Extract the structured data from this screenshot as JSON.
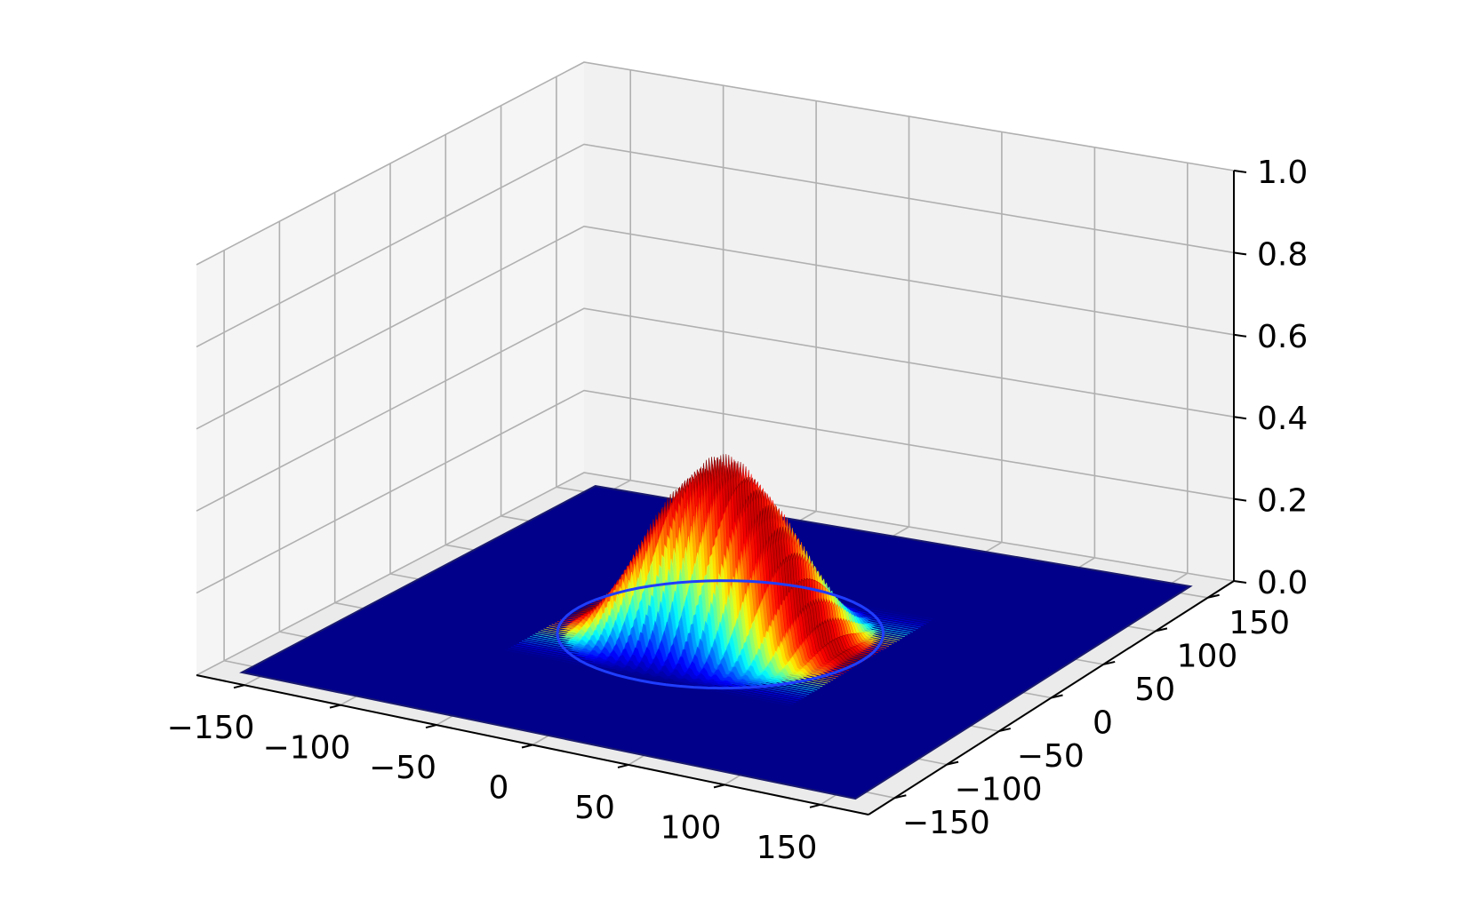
{
  "chart_data": {
    "type": "surface3d",
    "title": "",
    "xlabel": "",
    "ylabel": "",
    "zlabel": "",
    "xlim": [
      -175,
      175
    ],
    "ylim": [
      -175,
      175
    ],
    "zlim": [
      0,
      1
    ],
    "x_ticks": [
      -150,
      -100,
      -50,
      0,
      50,
      100,
      150
    ],
    "y_ticks": [
      -150,
      -100,
      -50,
      0,
      50,
      100,
      150
    ],
    "z_ticks": [
      0.0,
      0.2,
      0.4,
      0.6,
      0.8,
      1.0
    ],
    "x_tick_labels": [
      "−150",
      "−100",
      "−50",
      "0",
      "50",
      "100",
      "150"
    ],
    "y_tick_labels": [
      "−150",
      "−100",
      "−50",
      "0",
      "50",
      "100",
      "150"
    ],
    "z_tick_labels": [
      "0.0",
      "0.2",
      "0.4",
      "0.6",
      "0.8",
      "1.0"
    ],
    "grid": true,
    "colormap": "jet",
    "surface_extent": [
      -160,
      160
    ],
    "surface": {
      "description": "radially symmetric bump centered at origin; fringes along x",
      "center": [
        0,
        0
      ],
      "peak_z": 0.44,
      "radius": 75,
      "fringe_period_x": 3
    },
    "colors": {
      "pane_left": "#f5f5f5",
      "pane_back": "#f1f1f1",
      "pane_floor": "#ebebeb",
      "grid": "#b0b0b0",
      "base": "#00008b"
    }
  }
}
